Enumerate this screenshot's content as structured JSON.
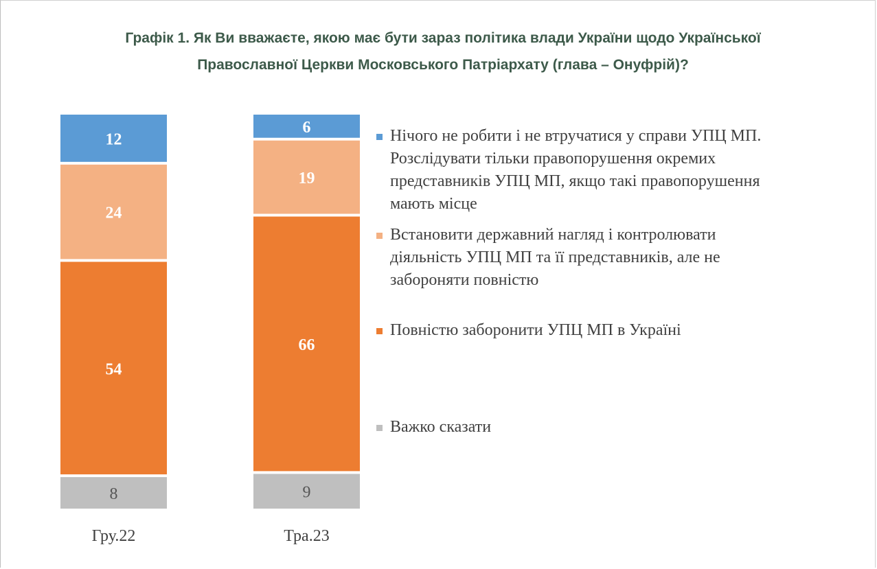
{
  "chart_data": {
    "type": "bar",
    "stacked": true,
    "title": "Графік 1. Як Ви вважаєте, якою має бути зараз політика влади України щодо Української Православної Церкви Московського Патріархату (глава – Онуфрій)?",
    "title_lines": [
      "Графік 1. Як Ви вважаєте, якою має бути зараз політика влади України щодо Української",
      "Православної Церкви Московського Патріархату (глава – Онуфрій)?"
    ],
    "categories": [
      "Гру.22",
      "Тра.23"
    ],
    "series": [
      {
        "name": "Нічого не робити і не втручатися у справи УПЦ МП. Розслідувати тільки правопорушення окремих представників УПЦ МП, якщо такі правопорушення мають місце",
        "name_lines": [
          "Нічого не робити і не втручатися у справи УПЦ МП.",
          "Розслідувати тільки правопорушення окремих",
          "представників УПЦ МП, якщо такі правопорушення",
          "мають місце"
        ],
        "values": [
          12,
          6
        ],
        "color": "#5b9bd5",
        "label_color": "#ffffff"
      },
      {
        "name": "Встановити державний нагляд і контролювати діяльність УПЦ МП та її представників, але не забороняти повністю",
        "name_lines": [
          "Встановити державний нагляд і контролювати",
          "діяльність УПЦ МП та її представників, але не",
          "забороняти повністю"
        ],
        "values": [
          24,
          19
        ],
        "color": "#f4b183",
        "label_color": "#ffffff"
      },
      {
        "name": "Повністю заборонити УПЦ МП в Україні",
        "name_lines": [
          "Повністю заборонити УПЦ МП в Україні"
        ],
        "values": [
          54,
          66
        ],
        "color": "#ed7d31",
        "label_color": "#ffffff"
      },
      {
        "name": "Важко сказати",
        "name_lines": [
          "Важко сказати"
        ],
        "values": [
          8,
          9
        ],
        "color": "#bfbfbf",
        "label_color": "#555555"
      }
    ],
    "legend_position": "right",
    "grid": false
  }
}
